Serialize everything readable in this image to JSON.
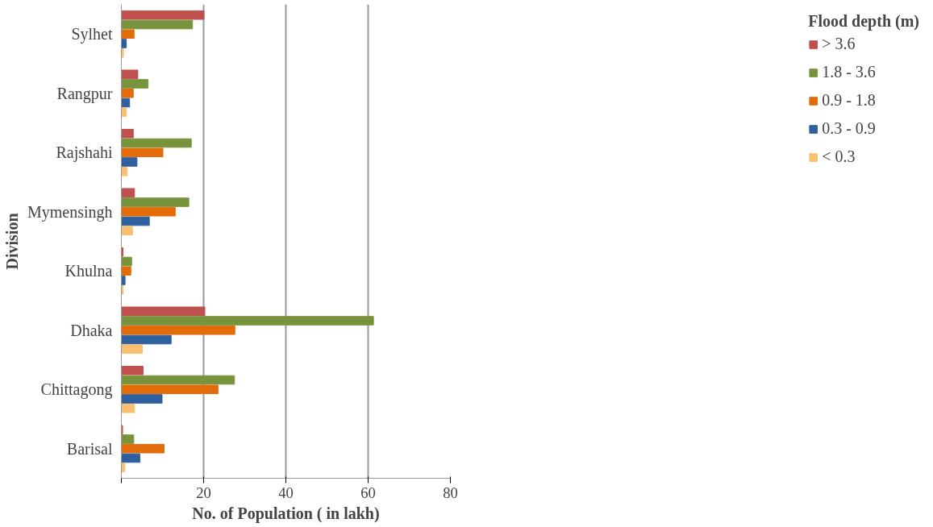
{
  "chart_data": {
    "type": "bar",
    "orientation": "horizontal",
    "xlabel": "No. of Population ( in lakh)",
    "ylabel": "Division",
    "legend_title": "Flood depth (m)",
    "categories": [
      "Sylhet",
      "Rangpur",
      "Rajshahi",
      "Mymensingh",
      "Khulna",
      "Dhaka",
      "Chittagong",
      "Barisal"
    ],
    "series": [
      {
        "name": "> 3.6",
        "color": "#c0504d",
        "values": [
          20.1,
          4.0,
          2.9,
          3.2,
          0.4,
          20.3,
          5.3,
          0.3
        ]
      },
      {
        "name": "1.8 - 3.6",
        "color": "#77933c",
        "values": [
          17.3,
          6.5,
          17.0,
          16.4,
          2.5,
          61.3,
          27.5,
          3.0
        ]
      },
      {
        "name": "0.9 - 1.8",
        "color": "#e36c09",
        "values": [
          3.1,
          2.9,
          10.1,
          13.1,
          2.3,
          27.6,
          23.5,
          10.4
        ]
      },
      {
        "name": "0.3 - 0.9",
        "color": "#2e5f9e",
        "values": [
          1.2,
          2.0,
          3.8,
          6.8,
          0.9,
          12.1,
          9.9,
          4.5
        ]
      },
      {
        "name": "< 0.3",
        "color": "#fabf6f",
        "values": [
          0.5,
          1.2,
          1.4,
          2.7,
          0.4,
          5.1,
          3.2,
          0.8
        ]
      }
    ],
    "xlim": [
      0,
      80
    ],
    "xticks": [
      {
        "value": 0,
        "label": null
      },
      20,
      40,
      60,
      80
    ],
    "grid": "x",
    "legend": "right"
  }
}
